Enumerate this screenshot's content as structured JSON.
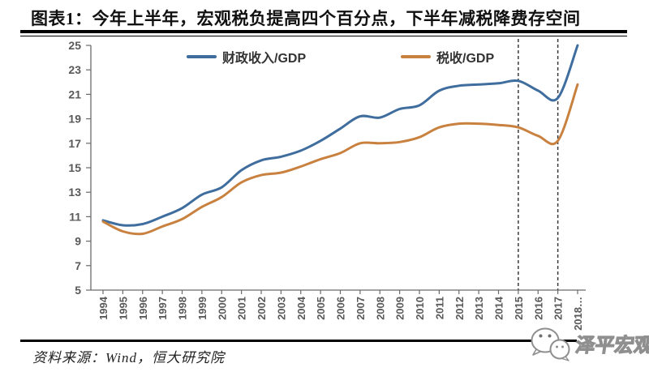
{
  "title": "图表1：今年上半年，宏观税负提高四个百分点，下半年减税降费存空间",
  "source_note": "资料来源：Wind，恒大研究院",
  "watermark": {
    "label": "泽平宏观",
    "icon": "chat-bubbles-logo"
  },
  "chart_data": {
    "type": "line",
    "categories": [
      "1994",
      "1995",
      "1996",
      "1997",
      "1998",
      "1999",
      "2000",
      "2001",
      "2002",
      "2003",
      "2004",
      "2005",
      "2006",
      "2007",
      "2008",
      "2009",
      "2010",
      "2011",
      "2012",
      "2013",
      "2014",
      "2015",
      "2016",
      "2017",
      "2018…"
    ],
    "series": [
      {
        "name": "财政收入/GDP",
        "color": "#3e6d9e",
        "values": [
          10.7,
          10.3,
          10.4,
          11.0,
          11.7,
          12.8,
          13.4,
          14.8,
          15.6,
          15.9,
          16.4,
          17.2,
          18.2,
          19.2,
          19.1,
          19.8,
          20.1,
          21.3,
          21.7,
          21.8,
          21.9,
          22.1,
          21.3,
          20.7,
          25.0
        ]
      },
      {
        "name": "税收/GDP",
        "color": "#c8813f",
        "values": [
          10.6,
          9.8,
          9.6,
          10.2,
          10.8,
          11.8,
          12.6,
          13.8,
          14.4,
          14.6,
          15.1,
          15.7,
          16.2,
          17.0,
          17.0,
          17.1,
          17.5,
          18.3,
          18.6,
          18.6,
          18.5,
          18.3,
          17.6,
          17.2,
          21.8
        ]
      }
    ],
    "ylim": [
      5,
      25
    ],
    "yticks": [
      5,
      7,
      9,
      11,
      13,
      15,
      17,
      19,
      21,
      23,
      25
    ],
    "grid": false,
    "legend_position": "top-inside",
    "annotations": {
      "dashed_vlines_at": [
        "2015",
        "2017"
      ]
    },
    "axis_color": "#6b6b6b",
    "tick_label_color": "#595959",
    "dashed_line_color": "#3a3a3a"
  }
}
